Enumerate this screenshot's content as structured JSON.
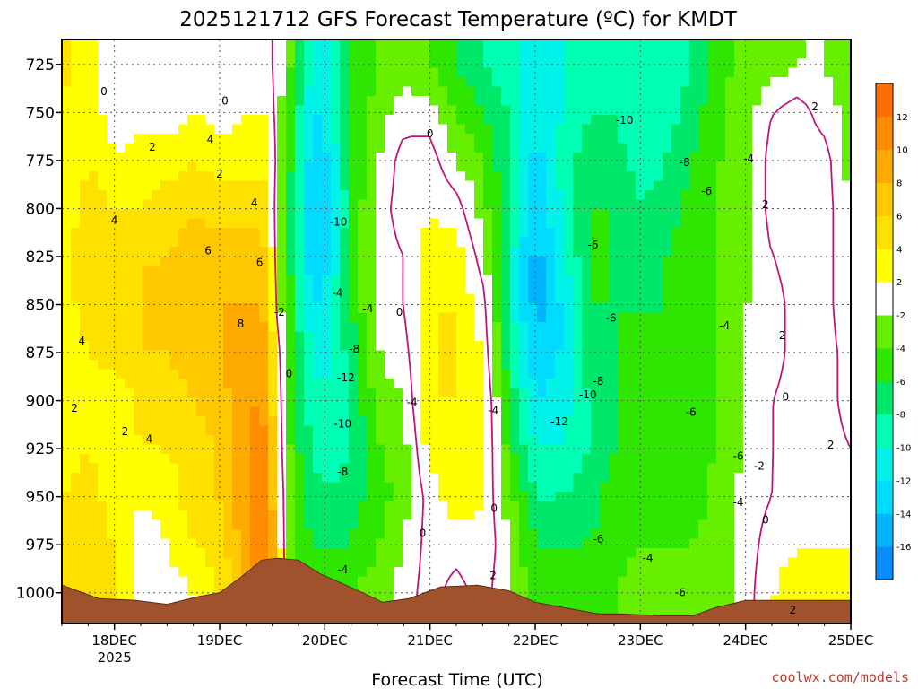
{
  "chart_data": {
    "type": "heatmap",
    "title": "2025121712 GFS Forecast Temperature (ºC) for KMDT",
    "xlabel": "Forecast Time (UTC)",
    "ylabel": "",
    "y_reversed": true,
    "grid": true,
    "x_ticks": [
      {
        "day": 18,
        "label": "18DEC",
        "sublabel": "2025"
      },
      {
        "day": 19,
        "label": "19DEC"
      },
      {
        "day": 20,
        "label": "20DEC"
      },
      {
        "day": 21,
        "label": "21DEC"
      },
      {
        "day": 22,
        "label": "22DEC"
      },
      {
        "day": 23,
        "label": "23DEC"
      },
      {
        "day": 24,
        "label": "24DEC"
      },
      {
        "day": 25,
        "label": "25DEC"
      }
    ],
    "x_range_days": [
      17.5,
      25.0
    ],
    "y_ticks": [
      725,
      750,
      775,
      800,
      825,
      850,
      875,
      900,
      925,
      950,
      975,
      1000
    ],
    "y_range_hpa": [
      712,
      1016
    ],
    "colorbar": {
      "levels": [
        -18,
        -16,
        -14,
        -12,
        -10,
        -8,
        -6,
        -4,
        -2,
        2,
        4,
        6,
        8,
        10,
        12,
        14
      ],
      "tick_labels": [
        "-16",
        "-14",
        "-12",
        "-10",
        "-8",
        "-6",
        "-4",
        "-2",
        "2",
        "4",
        "6",
        "8",
        "10",
        "12"
      ],
      "colors": [
        "#0a8cff",
        "#00b4ff",
        "#00dcff",
        "#00f2e8",
        "#00ffb4",
        "#00e86a",
        "#2ee600",
        "#66f000",
        "#ffffff",
        "#ffff00",
        "#ffe100",
        "#ffc800",
        "#ffaa00",
        "#ff8c00",
        "#ff6e00"
      ]
    },
    "column_profiles": [
      {
        "day": 17.5,
        "temps": [
          5,
          3,
          2,
          2,
          3,
          3,
          2,
          2,
          3,
          4,
          5,
          5
        ]
      },
      {
        "day": 17.75,
        "temps": [
          3,
          3,
          4,
          5,
          6,
          5,
          4,
          3,
          4,
          5,
          5,
          5
        ]
      },
      {
        "day": 18.0,
        "temps": [
          1,
          1,
          2,
          4,
          5,
          6,
          5,
          2,
          2,
          3,
          4,
          4
        ]
      },
      {
        "day": 18.25,
        "temps": [
          1,
          1,
          3,
          4,
          6,
          6,
          6,
          5,
          4,
          2,
          1,
          1
        ]
      },
      {
        "day": 18.5,
        "temps": [
          0,
          1,
          3,
          5,
          6,
          6,
          6,
          5,
          4,
          3,
          2,
          1
        ]
      },
      {
        "day": 18.75,
        "temps": [
          0,
          2,
          4,
          6,
          7,
          7,
          7,
          6,
          5,
          5,
          4,
          2
        ]
      },
      {
        "day": 19.0,
        "temps": [
          0,
          1,
          3,
          5,
          7,
          8,
          8,
          7,
          6,
          6,
          5,
          4
        ]
      },
      {
        "day": 19.25,
        "temps": [
          1,
          2,
          3,
          5,
          7,
          8,
          9,
          10,
          10,
          10,
          9,
          8
        ]
      },
      {
        "day": 19.45,
        "temps": [
          1,
          2,
          4,
          5,
          7,
          8,
          9,
          10,
          11,
          12,
          13,
          11
        ]
      },
      {
        "day": 19.55,
        "temps": [
          -1,
          -1,
          -1,
          -2,
          -2,
          -1,
          1,
          2,
          3,
          4,
          5,
          6
        ]
      },
      {
        "day": 19.65,
        "temps": [
          -3,
          -4,
          -5,
          -5,
          -5,
          -5,
          -4,
          -4,
          -4,
          -3,
          -3,
          -3
        ]
      },
      {
        "day": 19.85,
        "temps": [
          -10,
          -12,
          -13,
          -14,
          -14,
          -12,
          -10,
          -9,
          -8,
          -7,
          -6,
          -5
        ]
      },
      {
        "day": 20.0,
        "temps": [
          -11,
          -12,
          -13,
          -14,
          -13,
          -12,
          -11,
          -10,
          -9,
          -8,
          -6,
          -5
        ]
      },
      {
        "day": 20.25,
        "temps": [
          -6,
          -6,
          -6,
          -6,
          -6,
          -6,
          -7,
          -8,
          -8,
          -7,
          -6,
          -4
        ]
      },
      {
        "day": 20.5,
        "temps": [
          -4,
          -3,
          -2,
          -1,
          -1,
          -1,
          -2,
          -3,
          -4,
          -5,
          -4,
          -3
        ]
      },
      {
        "day": 20.75,
        "temps": [
          -3,
          -1,
          1,
          1,
          0,
          0,
          -1,
          -2,
          -3,
          -3,
          -2,
          -1
        ]
      },
      {
        "day": 21.0,
        "temps": [
          -4,
          -1,
          1,
          2,
          3,
          4,
          4,
          4,
          3,
          1,
          1,
          1
        ]
      },
      {
        "day": 21.25,
        "temps": [
          -6,
          -4,
          -2,
          1,
          3,
          4,
          4,
          4,
          4,
          3,
          1,
          -1
        ]
      },
      {
        "day": 21.5,
        "temps": [
          -8,
          -6,
          -4,
          -3,
          -1,
          1,
          2,
          3,
          3,
          2,
          2,
          1
        ]
      },
      {
        "day": 21.75,
        "temps": [
          -9,
          -8,
          -8,
          -8,
          -9,
          -9,
          -8,
          -6,
          -5,
          -3,
          -2,
          -2
        ]
      },
      {
        "day": 22.0,
        "temps": [
          -11,
          -12,
          -13,
          -14,
          -15,
          -15,
          -14,
          -12,
          -10,
          -8,
          -6,
          -5
        ]
      },
      {
        "day": 22.25,
        "temps": [
          -10,
          -10,
          -9,
          -10,
          -11,
          -12,
          -12,
          -11,
          -10,
          -8,
          -6,
          -5
        ]
      },
      {
        "day": 22.5,
        "temps": [
          -10,
          -8,
          -7,
          -6,
          -6,
          -6,
          -7,
          -8,
          -8,
          -7,
          -6,
          -5
        ]
      },
      {
        "day": 22.75,
        "temps": [
          -9,
          -8,
          -7,
          -6,
          -6,
          -6,
          -6,
          -6,
          -6,
          -5,
          -5,
          -4
        ]
      },
      {
        "day": 23.0,
        "temps": [
          -10,
          -10,
          -9,
          -8,
          -7,
          -6,
          -6,
          -6,
          -6,
          -5,
          -4,
          -3
        ]
      },
      {
        "day": 23.25,
        "temps": [
          -9,
          -9,
          -8,
          -7,
          -6,
          -6,
          -6,
          -6,
          -6,
          -5,
          -4,
          -3
        ]
      },
      {
        "day": 23.5,
        "temps": [
          -8,
          -7,
          -6,
          -5,
          -5,
          -5,
          -5,
          -5,
          -5,
          -5,
          -4,
          -3
        ]
      },
      {
        "day": 23.75,
        "temps": [
          -5,
          -4,
          -4,
          -4,
          -4,
          -4,
          -4,
          -4,
          -4,
          -3,
          -3,
          -3
        ]
      },
      {
        "day": 24.0,
        "temps": [
          -3,
          -3,
          -3,
          -3,
          -3,
          -2,
          -2,
          -2,
          -2,
          -1,
          -1,
          -1
        ]
      },
      {
        "day": 24.25,
        "temps": [
          -3,
          0,
          1,
          1,
          0,
          -1,
          -1,
          0,
          0,
          0,
          1,
          2
        ]
      },
      {
        "day": 24.5,
        "temps": [
          -2,
          1,
          1,
          1,
          1,
          1,
          1,
          1,
          1,
          1,
          2,
          3
        ]
      },
      {
        "day": 24.75,
        "temps": [
          -2,
          -1,
          1,
          1,
          1,
          1,
          1,
          1,
          1,
          1,
          2,
          3
        ]
      },
      {
        "day": 25.0,
        "temps": [
          -3,
          -3,
          -3,
          -2,
          -2,
          -2,
          -1,
          -1,
          0,
          1,
          2,
          3
        ]
      }
    ],
    "terrain_surface": [
      {
        "day": 17.5,
        "p": 996
      },
      {
        "day": 17.85,
        "p": 1003
      },
      {
        "day": 18.2,
        "p": 1004
      },
      {
        "day": 18.5,
        "p": 1006
      },
      {
        "day": 18.8,
        "p": 1002
      },
      {
        "day": 19.0,
        "p": 1000
      },
      {
        "day": 19.2,
        "p": 992
      },
      {
        "day": 19.4,
        "p": 983
      },
      {
        "day": 19.55,
        "p": 982
      },
      {
        "day": 19.75,
        "p": 983
      },
      {
        "day": 19.95,
        "p": 990
      },
      {
        "day": 20.2,
        "p": 996
      },
      {
        "day": 20.4,
        "p": 1001
      },
      {
        "day": 20.55,
        "p": 1005
      },
      {
        "day": 20.8,
        "p": 1003
      },
      {
        "day": 21.1,
        "p": 997
      },
      {
        "day": 21.45,
        "p": 996
      },
      {
        "day": 21.75,
        "p": 999
      },
      {
        "day": 22.0,
        "p": 1005
      },
      {
        "day": 22.3,
        "p": 1008
      },
      {
        "day": 22.6,
        "p": 1011
      },
      {
        "day": 22.8,
        "p": 1011
      },
      {
        "day": 23.2,
        "p": 1012
      },
      {
        "day": 23.5,
        "p": 1012
      },
      {
        "day": 23.7,
        "p": 1008
      },
      {
        "day": 24.0,
        "p": 1004
      },
      {
        "day": 24.4,
        "p": 1004
      },
      {
        "day": 24.8,
        "p": 1004
      },
      {
        "day": 25.0,
        "p": 1004
      }
    ],
    "contour_labels": [
      {
        "day": 17.9,
        "p": 739,
        "text": "0"
      },
      {
        "day": 18.36,
        "p": 768,
        "text": "2"
      },
      {
        "day": 18.0,
        "p": 806,
        "text": "4"
      },
      {
        "day": 17.69,
        "p": 869,
        "text": "4"
      },
      {
        "day": 17.62,
        "p": 904,
        "text": "2"
      },
      {
        "day": 18.1,
        "p": 916,
        "text": "2"
      },
      {
        "day": 18.33,
        "p": 920,
        "text": "4"
      },
      {
        "day": 19.05,
        "p": 744,
        "text": "0"
      },
      {
        "day": 18.91,
        "p": 764,
        "text": "4"
      },
      {
        "day": 19.0,
        "p": 782,
        "text": "2"
      },
      {
        "day": 19.33,
        "p": 797,
        "text": "4"
      },
      {
        "day": 18.89,
        "p": 822,
        "text": "6"
      },
      {
        "day": 19.38,
        "p": 828,
        "text": "6"
      },
      {
        "day": 19.2,
        "p": 860,
        "text": "8"
      },
      {
        "day": 19.57,
        "p": 854,
        "text": "-2"
      },
      {
        "day": 19.66,
        "p": 886,
        "text": "0"
      },
      {
        "day": 20.13,
        "p": 807,
        "text": "-10"
      },
      {
        "day": 20.12,
        "p": 844,
        "text": "-4"
      },
      {
        "day": 20.41,
        "p": 852,
        "text": "-4"
      },
      {
        "day": 20.28,
        "p": 873,
        "text": "-8"
      },
      {
        "day": 20.2,
        "p": 888,
        "text": "-12"
      },
      {
        "day": 20.17,
        "p": 912,
        "text": "-10"
      },
      {
        "day": 20.17,
        "p": 937,
        "text": "-8"
      },
      {
        "day": 20.17,
        "p": 988,
        "text": "-4"
      },
      {
        "day": 20.71,
        "p": 854,
        "text": "0"
      },
      {
        "day": 20.83,
        "p": 901,
        "text": "-4"
      },
      {
        "day": 21.0,
        "p": 761,
        "text": "0"
      },
      {
        "day": 20.93,
        "p": 969,
        "text": "0"
      },
      {
        "day": 21.6,
        "p": 905,
        "text": "-4"
      },
      {
        "day": 21.61,
        "p": 956,
        "text": "0"
      },
      {
        "day": 21.6,
        "p": 991,
        "text": "2"
      },
      {
        "day": 22.23,
        "p": 911,
        "text": "-12"
      },
      {
        "day": 22.5,
        "p": 897,
        "text": "-10"
      },
      {
        "day": 22.6,
        "p": 890,
        "text": "-8"
      },
      {
        "day": 22.55,
        "p": 819,
        "text": "-6"
      },
      {
        "day": 22.72,
        "p": 857,
        "text": "-6"
      },
      {
        "day": 22.85,
        "p": 754,
        "text": "-10"
      },
      {
        "day": 23.42,
        "p": 776,
        "text": "-8"
      },
      {
        "day": 23.63,
        "p": 791,
        "text": "-6"
      },
      {
        "day": 23.48,
        "p": 906,
        "text": "-6"
      },
      {
        "day": 23.8,
        "p": 861,
        "text": "-4"
      },
      {
        "day": 23.07,
        "p": 982,
        "text": "-4"
      },
      {
        "day": 22.6,
        "p": 972,
        "text": "-6"
      },
      {
        "day": 23.38,
        "p": 1000,
        "text": "-6"
      },
      {
        "day": 24.03,
        "p": 774,
        "text": "-4"
      },
      {
        "day": 24.17,
        "p": 798,
        "text": "-2"
      },
      {
        "day": 24.33,
        "p": 866,
        "text": "-2"
      },
      {
        "day": 24.38,
        "p": 898,
        "text": "0"
      },
      {
        "day": 24.66,
        "p": 747,
        "text": "2"
      },
      {
        "day": 23.93,
        "p": 929,
        "text": "-6"
      },
      {
        "day": 24.13,
        "p": 934,
        "text": "-2"
      },
      {
        "day": 23.93,
        "p": 953,
        "text": "-4"
      },
      {
        "day": 24.19,
        "p": 962,
        "text": "0"
      },
      {
        "day": 24.81,
        "p": 923,
        "text": "2"
      },
      {
        "day": 24.45,
        "p": 1009,
        "text": "2"
      }
    ]
  },
  "credit": "coolwx.com/models"
}
